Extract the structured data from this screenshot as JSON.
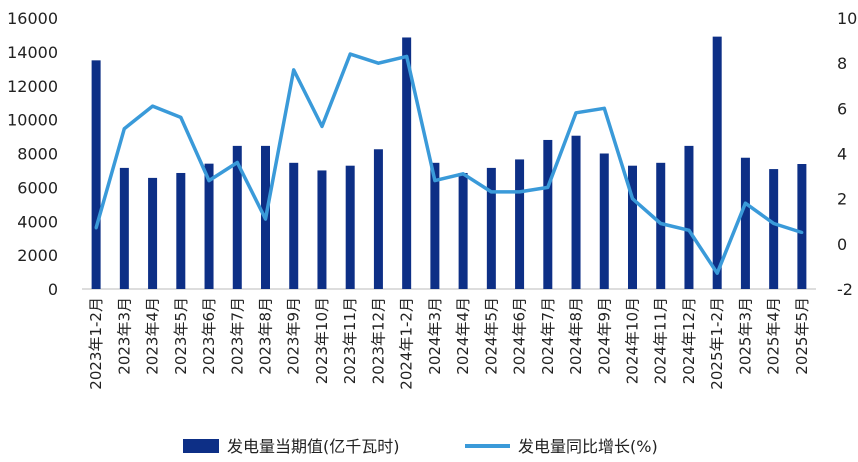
{
  "chart_data": {
    "type": "bar+line",
    "categories": [
      "2023年1-2月",
      "2023年3月",
      "2023年4月",
      "2023年5月",
      "2023年6月",
      "2023年7月",
      "2023年8月",
      "2023年9月",
      "2023年10月",
      "2023年11月",
      "2023年12月",
      "2024年1-2月",
      "2024年3月",
      "2024年4月",
      "2024年5月",
      "2024年6月",
      "2024年7月",
      "2024年8月",
      "2024年9月",
      "2024年10月",
      "2024年11月",
      "2024年12月",
      "2025年1-2月",
      "2025年3月",
      "2025年4月",
      "2025年5月"
    ],
    "series": [
      {
        "name": "发电量当期值(亿千瓦时)",
        "type": "bar",
        "axis": "left",
        "color": "#0d2f86",
        "values": [
          13500,
          7150,
          6560,
          6850,
          7400,
          8450,
          8450,
          7450,
          7000,
          7280,
          8250,
          14850,
          7450,
          6850,
          7150,
          7650,
          8800,
          9050,
          8000,
          7280,
          7450,
          8450,
          14900,
          7750,
          7080,
          7380
        ]
      },
      {
        "name": "发电量同比增长(%)",
        "type": "line",
        "axis": "right",
        "color": "#3a9ad9",
        "values": [
          0.7,
          5.1,
          6.1,
          5.6,
          2.8,
          3.6,
          1.1,
          7.7,
          5.2,
          8.4,
          8.0,
          8.3,
          2.8,
          3.1,
          2.3,
          2.3,
          2.5,
          5.8,
          6.0,
          2.0,
          0.9,
          0.6,
          -1.3,
          1.8,
          0.9,
          0.5
        ]
      }
    ],
    "y_left": {
      "min": 0,
      "max": 16000,
      "ticks": [
        "0",
        "2000",
        "4000",
        "6000",
        "8000",
        "10000",
        "12000",
        "14000",
        "16000"
      ]
    },
    "y_right": {
      "min": -2,
      "max": 10,
      "ticks": [
        "-2",
        "0",
        "2",
        "4",
        "6",
        "8",
        "10"
      ]
    },
    "grid": false,
    "legend_position": "bottom"
  }
}
